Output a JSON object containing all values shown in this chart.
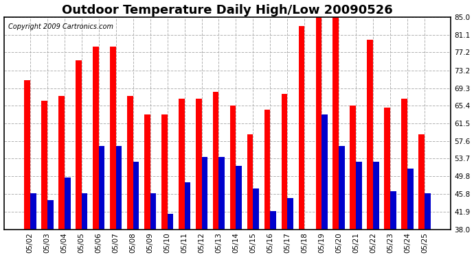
{
  "title": "Outdoor Temperature Daily High/Low 20090526",
  "copyright": "Copyright 2009 Cartronics.com",
  "dates": [
    "05/02",
    "05/03",
    "05/04",
    "05/05",
    "05/06",
    "05/07",
    "05/08",
    "05/09",
    "05/10",
    "05/11",
    "05/12",
    "05/13",
    "05/14",
    "05/15",
    "05/16",
    "05/17",
    "05/18",
    "05/19",
    "05/20",
    "05/21",
    "05/22",
    "05/23",
    "05/24",
    "05/25"
  ],
  "highs": [
    71.0,
    66.5,
    67.5,
    75.5,
    78.5,
    78.5,
    67.5,
    63.5,
    63.5,
    67.0,
    67.0,
    68.5,
    65.5,
    59.0,
    64.5,
    68.0,
    83.0,
    85.0,
    85.0,
    65.5,
    80.0,
    65.0,
    67.0,
    59.0
  ],
  "lows": [
    46.0,
    44.5,
    49.5,
    46.0,
    56.5,
    56.5,
    53.0,
    46.0,
    41.5,
    48.5,
    54.0,
    54.0,
    52.0,
    47.0,
    42.0,
    45.0,
    38.0,
    63.5,
    56.5,
    53.0,
    53.0,
    46.5,
    51.5,
    46.0
  ],
  "high_color": "#ff0000",
  "low_color": "#0000cc",
  "bg_color": "#ffffff",
  "grid_color": "#aaaaaa",
  "ylim": [
    38.0,
    85.0
  ],
  "yticks": [
    38.0,
    41.9,
    45.8,
    49.8,
    53.7,
    57.6,
    61.5,
    65.4,
    69.3,
    73.2,
    77.2,
    81.1,
    85.0
  ],
  "bar_width": 0.35,
  "title_fontsize": 13,
  "tick_fontsize": 7.5,
  "copyright_fontsize": 7
}
